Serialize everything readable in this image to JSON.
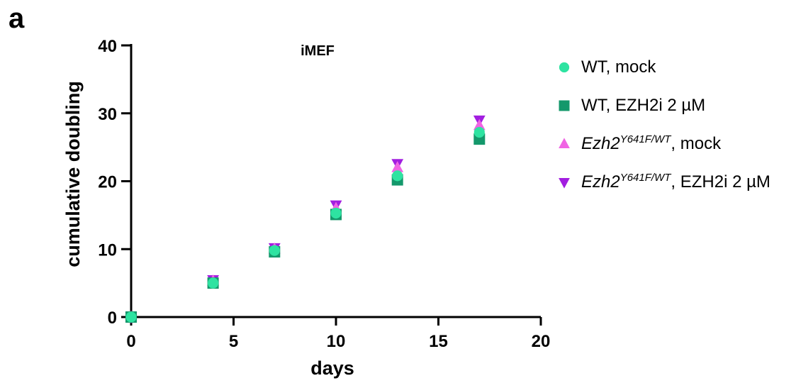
{
  "panel_label": "a",
  "colors": {
    "wt_mock": "#2ee3a1",
    "wt_ezh2i": "#14986b",
    "mut_mock": "#f064e4",
    "mut_ezh2i": "#a21ee0",
    "axis": "#000000"
  },
  "legend": [
    {
      "marker": "circle",
      "color_key": "wt_mock",
      "prefix": "WT, mock",
      "gene": "",
      "sup": "",
      "suffix": ""
    },
    {
      "marker": "square",
      "color_key": "wt_ezh2i",
      "prefix": "WT, EZH2i 2 µM",
      "gene": "",
      "sup": "",
      "suffix": ""
    },
    {
      "marker": "triangle-up",
      "color_key": "mut_mock",
      "prefix": "",
      "gene": "Ezh2",
      "sup": "Y641F/WT",
      "suffix": ", mock"
    },
    {
      "marker": "triangle-down",
      "color_key": "mut_ezh2i",
      "prefix": "",
      "gene": "Ezh2",
      "sup": "Y641F/WT",
      "suffix": ", EZH2i 2 µM"
    }
  ],
  "chart_data": {
    "type": "scatter",
    "title": "iMEF",
    "xlabel": "days",
    "ylabel": "cumulative doubling",
    "xlim": [
      0,
      20
    ],
    "ylim": [
      0,
      40
    ],
    "xticks": [
      0,
      5,
      10,
      15,
      20
    ],
    "yticks": [
      0,
      10,
      20,
      30,
      40
    ],
    "legend_position": "right",
    "grid": false,
    "x": [
      0,
      4,
      7,
      10,
      13,
      17
    ],
    "series": [
      {
        "name": "Ezh2 Y641F/WT, EZH2i 2 µM",
        "marker": "triangle-down",
        "color_key": "mut_ezh2i",
        "values": [
          0,
          5.5,
          10.2,
          16.5,
          22.6,
          29.0
        ]
      },
      {
        "name": "Ezh2 Y641F/WT, mock",
        "marker": "triangle-up",
        "color_key": "mut_mock",
        "values": [
          0,
          5.3,
          10.0,
          16.0,
          22.0,
          28.2
        ]
      },
      {
        "name": "WT, EZH2i 2 µM",
        "marker": "square",
        "color_key": "wt_ezh2i",
        "values": [
          0,
          5.0,
          9.6,
          15.1,
          20.2,
          26.2
        ]
      },
      {
        "name": "WT, mock",
        "marker": "circle",
        "color_key": "wt_mock",
        "values": [
          0,
          5.0,
          9.8,
          15.3,
          20.8,
          27.2
        ]
      }
    ]
  }
}
